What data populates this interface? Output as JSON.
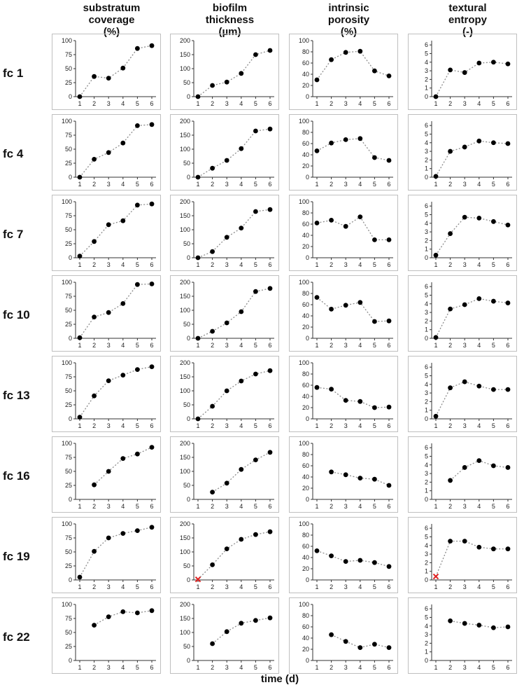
{
  "columns": [
    {
      "key": "coverage",
      "title": [
        "substratum",
        "coverage",
        "(%)"
      ]
    },
    {
      "key": "thickness",
      "title": [
        "biofilm",
        "thickness",
        "(µm)"
      ]
    },
    {
      "key": "porosity",
      "title": [
        "intrinsic",
        "porosity",
        "(%)"
      ]
    },
    {
      "key": "entropy",
      "title": [
        "textural",
        "entropy",
        "(-)"
      ]
    }
  ],
  "rows": [
    "fc 1",
    "fc 4",
    "fc 7",
    "fc 10",
    "fc 13",
    "fc 16",
    "fc 19",
    "fc 22"
  ],
  "xlabel": "time (d)",
  "colors": {
    "points": "#000000",
    "line": "#8c8c8c",
    "missing_marker": "#e02020"
  },
  "chart_data": {
    "type": "scatter",
    "layout": "grid of small multiples (rows = flow cells, columns = parameters)",
    "x": [
      1,
      2,
      3,
      4,
      5,
      6
    ],
    "x_tick_labels": [
      "1",
      "2",
      "3",
      "4",
      "5",
      "6"
    ],
    "axes": {
      "coverage": {
        "ylim": [
          0,
          100
        ],
        "yticks": [
          0,
          25,
          50,
          75,
          100
        ]
      },
      "thickness": {
        "ylim": [
          0,
          200
        ],
        "yticks": [
          0,
          50,
          100,
          150,
          200
        ]
      },
      "porosity": {
        "ylim": [
          0,
          100
        ],
        "yticks": [
          0,
          20,
          40,
          60,
          80,
          100
        ]
      },
      "entropy": {
        "ylim": [
          0,
          6.5
        ],
        "yticks": [
          0,
          1,
          2,
          3,
          4,
          5,
          6
        ]
      }
    },
    "grid": false,
    "marker_style": "black dots joined by dotted grey line",
    "series": [
      {
        "name": "fc 1",
        "coverage": [
          0,
          36,
          33,
          51,
          86,
          91
        ],
        "thickness": [
          0,
          40,
          52,
          83,
          150,
          165
        ],
        "porosity": [
          30,
          66,
          79,
          81,
          46,
          37
        ],
        "entropy": [
          0,
          3.1,
          2.8,
          3.9,
          4.0,
          3.8
        ]
      },
      {
        "name": "fc 4",
        "coverage": [
          0,
          32,
          44,
          61,
          92,
          94
        ],
        "thickness": [
          0,
          32,
          60,
          102,
          165,
          172
        ],
        "porosity": [
          47,
          61,
          67,
          69,
          35,
          30
        ],
        "entropy": [
          0.1,
          3.0,
          3.5,
          4.2,
          4.0,
          3.9
        ]
      },
      {
        "name": "fc 7",
        "coverage": [
          3,
          29,
          59,
          66,
          94,
          96
        ],
        "thickness": [
          0,
          22,
          73,
          106,
          165,
          172
        ],
        "porosity": [
          62,
          67,
          56,
          73,
          32,
          32
        ],
        "entropy": [
          0.3,
          2.8,
          4.7,
          4.6,
          4.2,
          3.8
        ]
      },
      {
        "name": "fc 10",
        "coverage": [
          1,
          38,
          46,
          62,
          96,
          97
        ],
        "thickness": [
          0,
          25,
          55,
          95,
          167,
          178
        ],
        "porosity": [
          73,
          52,
          59,
          64,
          30,
          31
        ],
        "entropy": [
          0.1,
          3.4,
          3.9,
          4.6,
          4.3,
          4.1
        ]
      },
      {
        "name": "fc 13",
        "coverage": [
          3,
          41,
          68,
          78,
          88,
          93
        ],
        "thickness": [
          0,
          45,
          100,
          135,
          160,
          172
        ],
        "porosity": [
          56,
          53,
          33,
          31,
          20,
          21
        ],
        "entropy": [
          0.3,
          3.6,
          4.3,
          3.8,
          3.4,
          3.4
        ]
      },
      {
        "name": "fc 16",
        "coverage": [
          null,
          26,
          50,
          73,
          81,
          93
        ],
        "thickness": [
          null,
          26,
          58,
          107,
          141,
          168
        ],
        "porosity": [
          null,
          49,
          44,
          38,
          36,
          25
        ],
        "entropy": [
          null,
          2.2,
          3.7,
          4.5,
          3.9,
          3.7
        ]
      },
      {
        "name": "fc 19",
        "coverage": [
          5,
          51,
          75,
          83,
          88,
          94
        ],
        "thickness": [
          2,
          54,
          111,
          145,
          162,
          172
        ],
        "porosity": [
          52,
          43,
          33,
          35,
          31,
          24
        ],
        "entropy": [
          0.4,
          4.5,
          4.5,
          3.8,
          3.6,
          3.6
        ],
        "missing_marker_at": {
          "thickness": 1,
          "entropy": 1
        }
      },
      {
        "name": "fc 22",
        "coverage": [
          null,
          63,
          78,
          87,
          85,
          89
        ],
        "thickness": [
          null,
          60,
          103,
          133,
          143,
          152
        ],
        "porosity": [
          null,
          46,
          34,
          23,
          29,
          23
        ],
        "entropy": [
          null,
          4.6,
          4.3,
          4.1,
          3.8,
          3.9
        ]
      }
    ]
  }
}
